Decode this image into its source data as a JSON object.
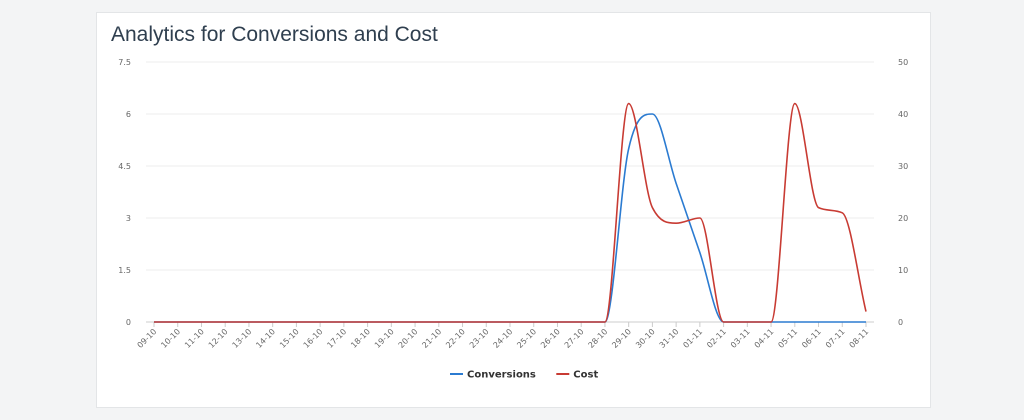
{
  "chart_data": {
    "type": "line",
    "title": "Analytics for Conversions and Cost",
    "categories": [
      "09-10",
      "10-10",
      "11-10",
      "12-10",
      "13-10",
      "14-10",
      "15-10",
      "16-10",
      "17-10",
      "18-10",
      "19-10",
      "20-10",
      "21-10",
      "22-10",
      "23-10",
      "24-10",
      "25-10",
      "26-10",
      "27-10",
      "28-10",
      "29-10",
      "30-10",
      "31-10",
      "01-11",
      "02-11",
      "03-11",
      "04-11",
      "05-11",
      "06-11",
      "07-11",
      "08-11"
    ],
    "y_left": {
      "ylim": [
        0,
        7.5
      ],
      "ticks": [
        "0",
        "1.5",
        "3",
        "4.5",
        "6",
        "7.5"
      ]
    },
    "y_right": {
      "ylim": [
        0,
        50
      ],
      "ticks": [
        "0",
        "10",
        "20",
        "30",
        "40",
        "50"
      ]
    },
    "grid": true,
    "legend_position": "bottom-center",
    "series": [
      {
        "name": "Conversions",
        "axis": "left",
        "color": "#2b7bd1",
        "values": [
          0,
          0,
          0,
          0,
          0,
          0,
          0,
          0,
          0,
          0,
          0,
          0,
          0,
          0,
          0,
          0,
          0,
          0,
          0,
          0,
          5,
          6,
          4,
          2,
          0,
          0,
          0,
          0,
          0,
          0,
          0
        ]
      },
      {
        "name": "Cost",
        "axis": "right",
        "color": "#c83b33",
        "values": [
          0,
          0,
          0,
          0,
          0,
          0,
          0,
          0,
          0,
          0,
          0,
          0,
          0,
          0,
          0,
          0,
          0,
          0,
          0,
          0,
          42,
          22,
          19,
          20,
          0,
          0,
          0,
          42,
          22,
          21,
          2
        ]
      }
    ]
  }
}
